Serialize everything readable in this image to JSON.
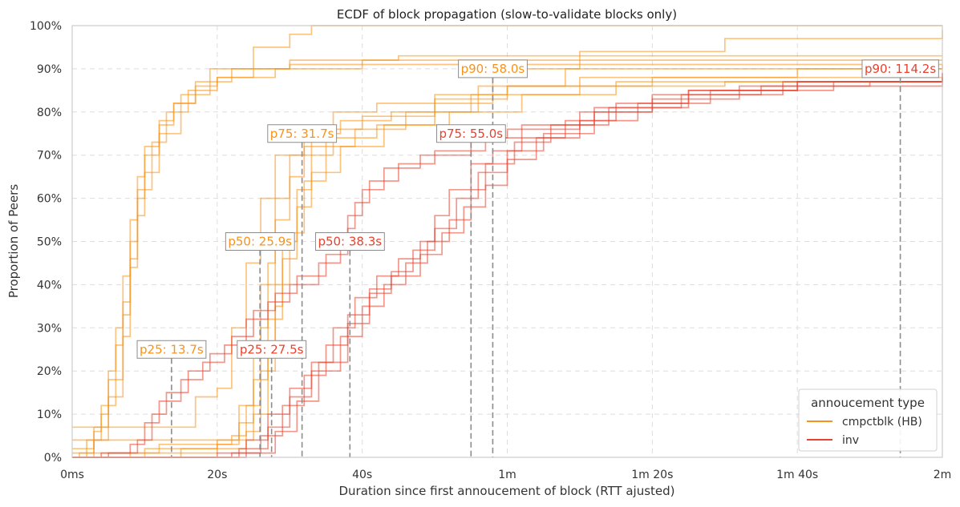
{
  "chart_data": {
    "type": "line",
    "title": "ECDF of block propagation (slow-to-validate blocks only)",
    "xlabel": "Duration since first annoucement of block (RTT ajusted)",
    "ylabel": "Proportion of Peers",
    "xlim": [
      0,
      120
    ],
    "ylim": [
      0,
      1
    ],
    "x_ticks": [
      0,
      20,
      40,
      60,
      80,
      100,
      120
    ],
    "x_tick_labels": [
      "0ms",
      "20s",
      "40s",
      "1m",
      "1m 20s",
      "1m 40s",
      "2m"
    ],
    "y_ticks": [
      0,
      0.1,
      0.2,
      0.3,
      0.4,
      0.5,
      0.6,
      0.7,
      0.8,
      0.9,
      1.0
    ],
    "y_tick_labels": [
      "0%",
      "10%",
      "20%",
      "30%",
      "40%",
      "50%",
      "60%",
      "70%",
      "80%",
      "90%",
      "100%"
    ],
    "grid": true,
    "legend": {
      "title": "annoucement type",
      "position": "bottom-right",
      "entries": [
        {
          "label": "cmpctblk (HB)",
          "color": "#f7931a"
        },
        {
          "label": "inv",
          "color": "#e8412e"
        }
      ]
    },
    "colors": {
      "cmpctblk": "#f7931a",
      "inv": "#e8412e",
      "marker": "#8c8c8c"
    },
    "percentiles": [
      {
        "label": "p25: 13.7s",
        "group": "cmpctblk",
        "x": 13.7,
        "y": 0.25
      },
      {
        "label": "p50: 25.9s",
        "group": "cmpctblk",
        "x": 25.9,
        "y": 0.5
      },
      {
        "label": "p75: 31.7s",
        "group": "cmpctblk",
        "x": 31.7,
        "y": 0.75
      },
      {
        "label": "p90: 58.0s",
        "group": "cmpctblk",
        "x": 58.0,
        "y": 0.9
      },
      {
        "label": "p25: 27.5s",
        "group": "inv",
        "x": 27.5,
        "y": 0.25
      },
      {
        "label": "p50: 38.3s",
        "group": "inv",
        "x": 38.3,
        "y": 0.5
      },
      {
        "label": "p75: 55.0s",
        "group": "inv",
        "x": 55.0,
        "y": 0.75
      },
      {
        "label": "p90: 114.2s",
        "group": "inv",
        "x": 114.2,
        "y": 0.9
      }
    ],
    "series": [
      {
        "name": "cmpctblk (HB) A",
        "group": "cmpctblk",
        "points": [
          [
            0,
            0
          ],
          [
            2,
            0.02
          ],
          [
            3,
            0.06
          ],
          [
            4,
            0.1
          ],
          [
            5,
            0.2
          ],
          [
            6,
            0.3
          ],
          [
            7,
            0.42
          ],
          [
            8,
            0.55
          ],
          [
            9,
            0.65
          ],
          [
            10,
            0.72
          ],
          [
            12,
            0.78
          ],
          [
            14,
            0.82
          ],
          [
            17,
            0.86
          ],
          [
            20,
            0.88
          ],
          [
            25,
            0.9
          ],
          [
            30,
            0.91
          ],
          [
            40,
            0.92
          ],
          [
            120,
            0.92
          ]
        ]
      },
      {
        "name": "cmpctblk (HB) B",
        "group": "cmpctblk",
        "points": [
          [
            0,
            0
          ],
          [
            1,
            0.01
          ],
          [
            3,
            0.04
          ],
          [
            5,
            0.14
          ],
          [
            7,
            0.28
          ],
          [
            8,
            0.46
          ],
          [
            9,
            0.6
          ],
          [
            10,
            0.7
          ],
          [
            12,
            0.77
          ],
          [
            14,
            0.82
          ],
          [
            17,
            0.87
          ],
          [
            22,
            0.9
          ],
          [
            30,
            0.92
          ],
          [
            45,
            0.93
          ],
          [
            120,
            0.93
          ]
        ]
      },
      {
        "name": "cmpctblk (HB) C",
        "group": "cmpctblk",
        "points": [
          [
            0,
            0.02
          ],
          [
            2,
            0.04
          ],
          [
            4,
            0.12
          ],
          [
            6,
            0.26
          ],
          [
            7,
            0.36
          ],
          [
            8,
            0.5
          ],
          [
            9,
            0.62
          ],
          [
            11,
            0.73
          ],
          [
            13,
            0.8
          ],
          [
            16,
            0.85
          ],
          [
            20,
            0.88
          ],
          [
            28,
            0.9
          ],
          [
            40,
            0.91
          ],
          [
            120,
            0.91
          ]
        ]
      },
      {
        "name": "cmpctblk (HB) D",
        "group": "cmpctblk",
        "points": [
          [
            0,
            0
          ],
          [
            3,
            0.07
          ],
          [
            5,
            0.18
          ],
          [
            7,
            0.33
          ],
          [
            8,
            0.44
          ],
          [
            9,
            0.56
          ],
          [
            10,
            0.66
          ],
          [
            12,
            0.75
          ],
          [
            15,
            0.84
          ],
          [
            19,
            0.9
          ],
          [
            25,
            0.95
          ],
          [
            30,
            0.98
          ],
          [
            33,
            1.0
          ],
          [
            120,
            1.0
          ]
        ]
      },
      {
        "name": "cmpctblk (HB) E",
        "group": "cmpctblk",
        "points": [
          [
            0,
            0.07
          ],
          [
            10,
            0.07
          ],
          [
            16,
            0.07
          ],
          [
            17,
            0.14
          ],
          [
            20,
            0.16
          ],
          [
            22,
            0.3
          ],
          [
            24,
            0.45
          ],
          [
            26,
            0.6
          ],
          [
            28,
            0.7
          ],
          [
            32,
            0.76
          ],
          [
            36,
            0.8
          ],
          [
            42,
            0.82
          ],
          [
            50,
            0.84
          ],
          [
            60,
            0.86
          ],
          [
            90,
            0.87
          ],
          [
            120,
            0.87
          ]
        ]
      },
      {
        "name": "cmpctblk (HB) F",
        "group": "cmpctblk",
        "points": [
          [
            0,
            0
          ],
          [
            10,
            0.02
          ],
          [
            20,
            0.04
          ],
          [
            23,
            0.12
          ],
          [
            25,
            0.25
          ],
          [
            26,
            0.4
          ],
          [
            28,
            0.55
          ],
          [
            30,
            0.65
          ],
          [
            32,
            0.72
          ],
          [
            35,
            0.76
          ],
          [
            40,
            0.79
          ],
          [
            50,
            0.83
          ],
          [
            60,
            0.86
          ],
          [
            80,
            0.88
          ],
          [
            120,
            0.89
          ]
        ]
      },
      {
        "name": "cmpctblk (HB) G",
        "group": "cmpctblk",
        "points": [
          [
            0,
            0.01
          ],
          [
            12,
            0.03
          ],
          [
            22,
            0.05
          ],
          [
            24,
            0.12
          ],
          [
            26,
            0.3
          ],
          [
            27,
            0.45
          ],
          [
            28,
            0.6
          ],
          [
            30,
            0.7
          ],
          [
            33,
            0.75
          ],
          [
            37,
            0.78
          ],
          [
            44,
            0.8
          ],
          [
            55,
            0.84
          ],
          [
            70,
            0.88
          ],
          [
            100,
            0.9
          ],
          [
            120,
            0.9
          ]
        ]
      },
      {
        "name": "cmpctblk (HB) H",
        "group": "cmpctblk",
        "points": [
          [
            0,
            0
          ],
          [
            15,
            0.02
          ],
          [
            24,
            0.06
          ],
          [
            26,
            0.2
          ],
          [
            28,
            0.35
          ],
          [
            29,
            0.5
          ],
          [
            31,
            0.62
          ],
          [
            33,
            0.7
          ],
          [
            36,
            0.74
          ],
          [
            42,
            0.77
          ],
          [
            52,
            0.8
          ],
          [
            62,
            0.84
          ],
          [
            75,
            0.87
          ],
          [
            120,
            0.88
          ]
        ]
      },
      {
        "name": "cmpctblk (HB) I",
        "group": "cmpctblk",
        "points": [
          [
            0,
            0.04
          ],
          [
            16,
            0.04
          ],
          [
            25,
            0.1
          ],
          [
            27,
            0.25
          ],
          [
            28,
            0.4
          ],
          [
            30,
            0.52
          ],
          [
            32,
            0.64
          ],
          [
            35,
            0.72
          ],
          [
            39,
            0.76
          ],
          [
            46,
            0.8
          ],
          [
            56,
            0.86
          ],
          [
            68,
            0.9
          ],
          [
            120,
            0.91
          ]
        ]
      },
      {
        "name": "cmpctblk (HB) J",
        "group": "cmpctblk",
        "points": [
          [
            0,
            0
          ],
          [
            8,
            0.01
          ],
          [
            20,
            0.03
          ],
          [
            23,
            0.08
          ],
          [
            25,
            0.18
          ],
          [
            27,
            0.32
          ],
          [
            29,
            0.46
          ],
          [
            31,
            0.58
          ],
          [
            33,
            0.66
          ],
          [
            37,
            0.72
          ],
          [
            43,
            0.77
          ],
          [
            50,
            0.82
          ],
          [
            58,
            0.9
          ],
          [
            70,
            0.94
          ],
          [
            90,
            0.97
          ],
          [
            120,
            0.99
          ]
        ]
      },
      {
        "name": "inv A",
        "group": "inv",
        "points": [
          [
            0,
            0
          ],
          [
            4,
            0.01
          ],
          [
            8,
            0.03
          ],
          [
            10,
            0.08
          ],
          [
            12,
            0.13
          ],
          [
            15,
            0.18
          ],
          [
            18,
            0.22
          ],
          [
            21,
            0.26
          ],
          [
            24,
            0.32
          ],
          [
            27,
            0.36
          ],
          [
            30,
            0.4
          ],
          [
            34,
            0.45
          ],
          [
            37,
            0.5
          ],
          [
            38,
            0.56
          ],
          [
            40,
            0.62
          ],
          [
            43,
            0.67
          ],
          [
            48,
            0.7
          ],
          [
            55,
            0.74
          ],
          [
            60,
            0.76
          ],
          [
            70,
            0.8
          ],
          [
            80,
            0.84
          ],
          [
            95,
            0.86
          ],
          [
            110,
            0.87
          ],
          [
            120,
            0.88
          ]
        ]
      },
      {
        "name": "inv B",
        "group": "inv",
        "points": [
          [
            0,
            0
          ],
          [
            5,
            0.01
          ],
          [
            9,
            0.04
          ],
          [
            11,
            0.1
          ],
          [
            13,
            0.15
          ],
          [
            16,
            0.2
          ],
          [
            19,
            0.24
          ],
          [
            22,
            0.28
          ],
          [
            25,
            0.34
          ],
          [
            28,
            0.38
          ],
          [
            31,
            0.42
          ],
          [
            35,
            0.47
          ],
          [
            38,
            0.53
          ],
          [
            39,
            0.59
          ],
          [
            41,
            0.64
          ],
          [
            45,
            0.68
          ],
          [
            50,
            0.71
          ],
          [
            57,
            0.74
          ],
          [
            62,
            0.77
          ],
          [
            72,
            0.81
          ],
          [
            85,
            0.85
          ],
          [
            100,
            0.87
          ],
          [
            120,
            0.89
          ]
        ]
      },
      {
        "name": "inv C",
        "group": "inv",
        "points": [
          [
            0,
            0
          ],
          [
            20,
            0.01
          ],
          [
            24,
            0.04
          ],
          [
            27,
            0.1
          ],
          [
            30,
            0.16
          ],
          [
            33,
            0.22
          ],
          [
            36,
            0.3
          ],
          [
            39,
            0.37
          ],
          [
            42,
            0.42
          ],
          [
            45,
            0.46
          ],
          [
            48,
            0.5
          ],
          [
            50,
            0.56
          ],
          [
            52,
            0.62
          ],
          [
            55,
            0.68
          ],
          [
            58,
            0.71
          ],
          [
            62,
            0.74
          ],
          [
            68,
            0.78
          ],
          [
            75,
            0.82
          ],
          [
            85,
            0.85
          ],
          [
            100,
            0.87
          ],
          [
            120,
            0.88
          ]
        ]
      },
      {
        "name": "inv D",
        "group": "inv",
        "points": [
          [
            0,
            0
          ],
          [
            22,
            0.01
          ],
          [
            26,
            0.05
          ],
          [
            29,
            0.12
          ],
          [
            32,
            0.19
          ],
          [
            35,
            0.26
          ],
          [
            38,
            0.33
          ],
          [
            41,
            0.39
          ],
          [
            44,
            0.43
          ],
          [
            47,
            0.48
          ],
          [
            50,
            0.53
          ],
          [
            53,
            0.6
          ],
          [
            56,
            0.66
          ],
          [
            60,
            0.71
          ],
          [
            65,
            0.75
          ],
          [
            72,
            0.8
          ],
          [
            80,
            0.83
          ],
          [
            92,
            0.86
          ],
          [
            120,
            0.88
          ]
        ]
      },
      {
        "name": "inv E",
        "group": "inv",
        "points": [
          [
            0,
            0
          ],
          [
            23,
            0.02
          ],
          [
            27,
            0.07
          ],
          [
            30,
            0.14
          ],
          [
            33,
            0.2
          ],
          [
            37,
            0.28
          ],
          [
            40,
            0.35
          ],
          [
            43,
            0.4
          ],
          [
            46,
            0.45
          ],
          [
            49,
            0.5
          ],
          [
            52,
            0.55
          ],
          [
            55,
            0.62
          ],
          [
            57,
            0.68
          ],
          [
            61,
            0.73
          ],
          [
            66,
            0.77
          ],
          [
            74,
            0.81
          ],
          [
            84,
            0.84
          ],
          [
            98,
            0.87
          ],
          [
            120,
            0.89
          ]
        ]
      },
      {
        "name": "inv F",
        "group": "inv",
        "points": [
          [
            0,
            0
          ],
          [
            24,
            0.01
          ],
          [
            28,
            0.06
          ],
          [
            31,
            0.13
          ],
          [
            34,
            0.22
          ],
          [
            38,
            0.31
          ],
          [
            41,
            0.38
          ],
          [
            44,
            0.42
          ],
          [
            48,
            0.47
          ],
          [
            51,
            0.52
          ],
          [
            54,
            0.58
          ],
          [
            57,
            0.63
          ],
          [
            60,
            0.69
          ],
          [
            64,
            0.74
          ],
          [
            70,
            0.78
          ],
          [
            78,
            0.82
          ],
          [
            88,
            0.85
          ],
          [
            105,
            0.87
          ],
          [
            120,
            0.88
          ]
        ]
      }
    ]
  }
}
